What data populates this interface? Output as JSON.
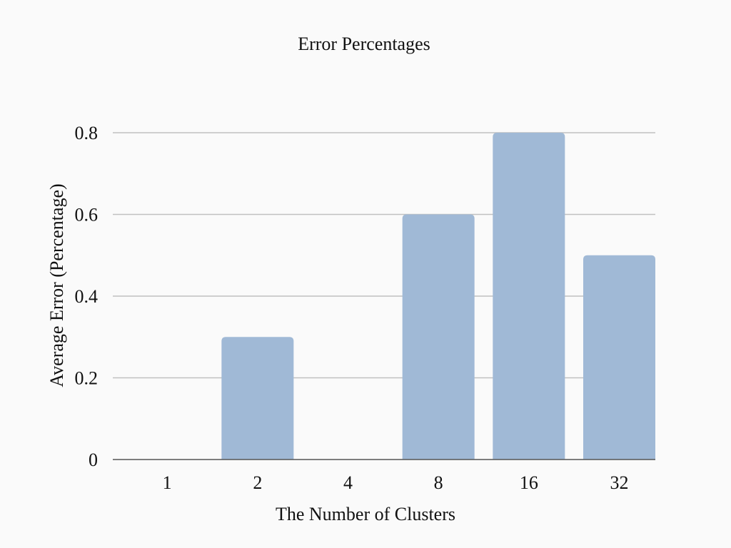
{
  "chart_data": {
    "type": "bar",
    "title": "Error Percentages",
    "xlabel": "The Number of Clusters",
    "ylabel": "Average  Error (Percentage)",
    "categories": [
      "1",
      "2",
      "4",
      "8",
      "16",
      "32"
    ],
    "values": [
      0,
      0.3,
      0,
      0.6,
      0.8,
      0.5
    ],
    "ylim": [
      0,
      0.8
    ],
    "yticks": [
      "0",
      "0.2",
      "0.4",
      "0.6",
      "0.8"
    ],
    "grid": true,
    "legend": "none",
    "bar_color": "#a0b9d6",
    "grid_color": "#c0c0c0",
    "axis_color": "#555555"
  }
}
